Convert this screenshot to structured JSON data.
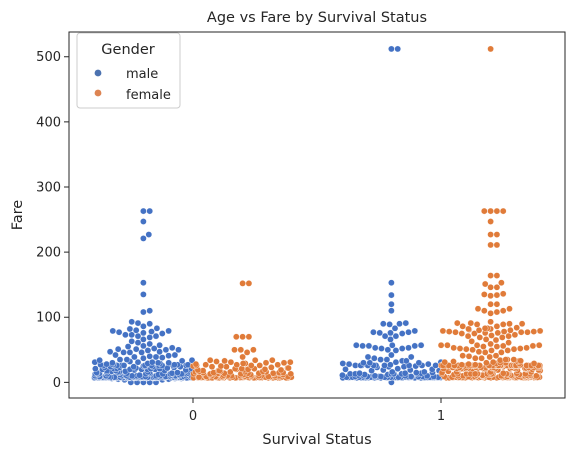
{
  "chart_data": {
    "type": "scatter",
    "title": "Age vs Fare by Survival Status",
    "xlabel": "Survival Status",
    "ylabel": "Fare",
    "categories": [
      "0",
      "1"
    ],
    "ylim": [
      -24,
      538
    ],
    "xlim": [
      -0.5,
      1.5
    ],
    "yticks": [
      "0",
      "100",
      "200",
      "300",
      "400",
      "500"
    ],
    "grid": false,
    "legend": {
      "title": "Gender",
      "placement": "top-left",
      "entries": [
        {
          "name": "male",
          "color": "#4c72b0"
        },
        {
          "name": "female",
          "color": "#dd8452"
        }
      ]
    },
    "colors": {
      "male": "#4472c4",
      "female": "#e07b39"
    },
    "series": [
      {
        "name": "male",
        "clusters": [
          {
            "category": "0",
            "offset": -0.2,
            "values": [
              263,
              263,
              247,
              227,
              221,
              153,
              135,
              110,
              108,
              93,
              91,
              90,
              86,
              83,
              82,
              80,
              79,
              79,
              78,
              77,
              76,
              75,
              73,
              73,
              71,
              71,
              69,
              66,
              63,
              61,
              59,
              57,
              56,
              55,
              53,
              52,
              51,
              51,
              50,
              50,
              49,
              47,
              47,
              46,
              46,
              46,
              42,
              42,
              41,
              40,
              39,
              39,
              38,
              37,
              35,
              35,
              34,
              34,
              33,
              32,
              31,
              31,
              31,
              30,
              30,
              30,
              29,
              29,
              28,
              28,
              27,
              27,
              27,
              27,
              27,
              26,
              26,
              26,
              26,
              26,
              26,
              26,
              26,
              26,
              26,
              26,
              25,
              25,
              25,
              24,
              24,
              24,
              24,
              23,
              23,
              23,
              22,
              22,
              21,
              21,
              21,
              21,
              21,
              21,
              20,
              20,
              20,
              20,
              20,
              19,
              19,
              19,
              18,
              18,
              18,
              18,
              17,
              17,
              16,
              16,
              16,
              16,
              16,
              15,
              15,
              15,
              15,
              14,
              14,
              14,
              14,
              14,
              14,
              13,
              13,
              13,
              13,
              13,
              13,
              13,
              13,
              13,
              13,
              12,
              12,
              12,
              12,
              11,
              11,
              11,
              11,
              11,
              11,
              10,
              10,
              10,
              10,
              10,
              10,
              10,
              10,
              10,
              10,
              10,
              10,
              9,
              9,
              9,
              9,
              9,
              9,
              9,
              9,
              9,
              9,
              9,
              9,
              9,
              9,
              9,
              9,
              9,
              9,
              9,
              9,
              8,
              8,
              8,
              8,
              8,
              8,
              8,
              8,
              8,
              8,
              8,
              8,
              8,
              8,
              8,
              8,
              8,
              8,
              8,
              8,
              8,
              8,
              8,
              8,
              8,
              8,
              8,
              8,
              8,
              8,
              8,
              8,
              8,
              8,
              8,
              8,
              8,
              8,
              8,
              8,
              8,
              8,
              8,
              8,
              8,
              8,
              8,
              8,
              7,
              7,
              7,
              7,
              7,
              7,
              7,
              7,
              7,
              7,
              7,
              7,
              7,
              7,
              7,
              7,
              7,
              7,
              7,
              7,
              7,
              7,
              7,
              7,
              7,
              7,
              7,
              7,
              7,
              7,
              7,
              7,
              7,
              7,
              7,
              7,
              7,
              7,
              7,
              7,
              7,
              7,
              7,
              7,
              7,
              7,
              7,
              7,
              7,
              7,
              7,
              7,
              7,
              7,
              7,
              7,
              7,
              7,
              7,
              7,
              7,
              7,
              6,
              6,
              6,
              5,
              5,
              4,
              4,
              0,
              0,
              0,
              0,
              0
            ]
          },
          {
            "category": "1",
            "offset": -0.2,
            "values": [
              512,
              512,
              153,
              134,
              120,
              110,
              91,
              90,
              90,
              89,
              83,
              79,
              77,
              77,
              76,
              76,
              75,
              71,
              71,
              66,
              57,
              57,
              57,
              56,
              56,
              56,
              53,
              53,
              52,
              52,
              50,
              49,
              42,
              39,
              39,
              37,
              35,
              35,
              33,
              33,
              31,
              31,
              30,
              30,
              30,
              29,
              28,
              28,
              27,
              26,
              26,
              26,
              26,
              26,
              26,
              26,
              26,
              26,
              26,
              26,
              25,
              24,
              24,
              23,
              21,
              20,
              20,
              19,
              19,
              18,
              18,
              16,
              16,
              15,
              15,
              14,
              14,
              14,
              13,
              13,
              13,
              13,
              13,
              13,
              13,
              13,
              12,
              12,
              11,
              11,
              10,
              10,
              10,
              10,
              9,
              9,
              9,
              9,
              9,
              9,
              9,
              9,
              9,
              9,
              8,
              8,
              8,
              8,
              8,
              8,
              8,
              8,
              8,
              8,
              8,
              8,
              8,
              8,
              8,
              8,
              8,
              8,
              8,
              8,
              8,
              8,
              8,
              8,
              8,
              8,
              8,
              8,
              8,
              8,
              8,
              8,
              8,
              8,
              8,
              8,
              8,
              8,
              8,
              8,
              8,
              8,
              8,
              8,
              8,
              7,
              7,
              7,
              7,
              7,
              7,
              7,
              7,
              7,
              7,
              7,
              7,
              7,
              7,
              7,
              7,
              7,
              7,
              7,
              7,
              7,
              7,
              7,
              7,
              7,
              7,
              7,
              7,
              7,
              7,
              7,
              7,
              7,
              7,
              7,
              7,
              7,
              7,
              0
            ]
          }
        ]
      },
      {
        "name": "female",
        "clusters": [
          {
            "category": "0",
            "offset": 0.2,
            "values": [
              152,
              152,
              70,
              70,
              70,
              50,
              50,
              50,
              46,
              39,
              34,
              34,
              34,
              33,
              32,
              31,
              31,
              30,
              30,
              29,
              29,
              28,
              27,
              27,
              27,
              26,
              26,
              26,
              25,
              25,
              24,
              24,
              23,
              22,
              22,
              21,
              21,
              21,
              20,
              20,
              20,
              19,
              19,
              19,
              18,
              18,
              18,
              17,
              17,
              17,
              17,
              16,
              16,
              16,
              16,
              15,
              15,
              15,
              15,
              14,
              14,
              14,
              14,
              14,
              14,
              13,
              13,
              13,
              13,
              13,
              13,
              12,
              12,
              12,
              12,
              11,
              11,
              11,
              10,
              10,
              10,
              10,
              10,
              10,
              10,
              10,
              10,
              9,
              9,
              9,
              9,
              9,
              9,
              9,
              9,
              9,
              9,
              9,
              8,
              8,
              8,
              8,
              8,
              8,
              8,
              8,
              8,
              8,
              8,
              8,
              8,
              8,
              8,
              8,
              8,
              8,
              8,
              8,
              8,
              8,
              7,
              7,
              7,
              7,
              7,
              7,
              7,
              7,
              7,
              7,
              7,
              7,
              7,
              7,
              7,
              7,
              7,
              7,
              7,
              7,
              7,
              7,
              7,
              7,
              7,
              7,
              7,
              7,
              7,
              7,
              7,
              7,
              7,
              7,
              7,
              7,
              7,
              7,
              7,
              7,
              7
            ]
          },
          {
            "category": "1",
            "offset": 0.2,
            "values": [
              512,
              263,
              263,
              263,
              263,
              247,
              227,
              227,
              211,
              211,
              164,
              164,
              153,
              151,
              146,
              146,
              136,
              135,
              134,
              133,
              120,
              120,
              113,
              113,
              110,
              110,
              108,
              106,
              93,
              91,
              91,
              90,
              90,
              89,
              89,
              86,
              86,
              84,
              83,
              83,
              82,
              82,
              81,
              80,
              80,
              79,
              79,
              78,
              78,
              78,
              77,
              77,
              77,
              76,
              76,
              75,
              75,
              73,
              72,
              71,
              71,
              69,
              69,
              66,
              65,
              63,
              61,
              59,
              57,
              57,
              57,
              57,
              56,
              56,
              55,
              55,
              53,
              53,
              52,
              52,
              51,
              51,
              50,
              49,
              49,
              47,
              46,
              46,
              41,
              41,
              40,
              39,
              37,
              37,
              35,
              35,
              35,
              34,
              33,
              33,
              32,
              32,
              31,
              31,
              30,
              30,
              30,
              29,
              29,
              29,
              28,
              27,
              27,
              27,
              26,
              26,
              26,
              26,
              26,
              26,
              26,
              26,
              26,
              26,
              26,
              26,
              26,
              26,
              26,
              26,
              26,
              26,
              26,
              26,
              26,
              26,
              26,
              26,
              26,
              26,
              26,
              26,
              26,
              26,
              26,
              26,
              26,
              26,
              26,
              26,
              26,
              26,
              26,
              26,
              26,
              26,
              26,
              26,
              26,
              26,
              26,
              26,
              26,
              26,
              26,
              26,
              26,
              25,
              24,
              24,
              23,
              23,
              23,
              23,
              23,
              23,
              23,
              23,
              23,
              23,
              23,
              23,
              23,
              23,
              23,
              23,
              23,
              22,
              22,
              22,
              22,
              22,
              22,
              22,
              21,
              21,
              21,
              21,
              21,
              21,
              21,
              21,
              21,
              21,
              21,
              21,
              21,
              21,
              21,
              20,
              20,
              19,
              19,
              18,
              18,
              17,
              16,
              16,
              16,
              15,
              15,
              14,
              14,
              13,
              13,
              13,
              13,
              13,
              13,
              13,
              13,
              13,
              13,
              13,
              13,
              13,
              13,
              13,
              12,
              12,
              12,
              12,
              12,
              11,
              11,
              11,
              11,
              11,
              10,
              10,
              10,
              10,
              10,
              10,
              10,
              10,
              10,
              10,
              10,
              9,
              9,
              9,
              9,
              9,
              9,
              9,
              9,
              9,
              9,
              9,
              9,
              9,
              9,
              8,
              8,
              8,
              8,
              8,
              8,
              8,
              8,
              8,
              8,
              8,
              8,
              8,
              8,
              8,
              8,
              8,
              8,
              8,
              8,
              8,
              8,
              8,
              8,
              8,
              8,
              8,
              8,
              8,
              8,
              8,
              8,
              8,
              8,
              8,
              8,
              8,
              8,
              8,
              8,
              8,
              8,
              7,
              7,
              7,
              7,
              7,
              7,
              7,
              7,
              7,
              7,
              7,
              7,
              7,
              7,
              7,
              7,
              7,
              7,
              7,
              7,
              7,
              7,
              7,
              7,
              7,
              7,
              7,
              7
            ]
          }
        ]
      }
    ]
  }
}
